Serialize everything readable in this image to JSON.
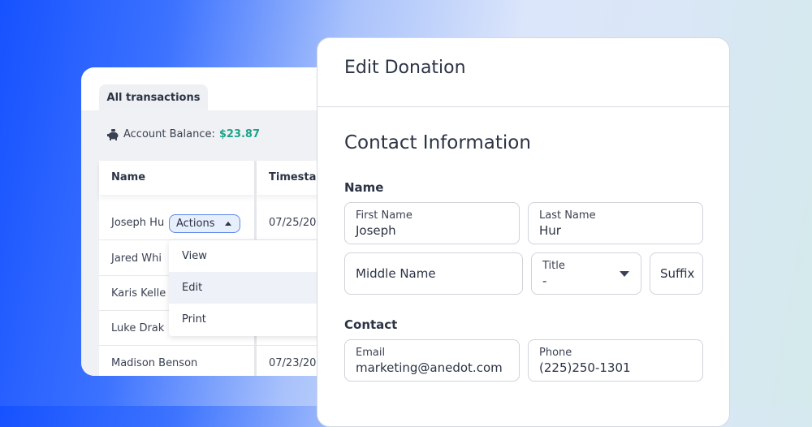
{
  "transactions": {
    "tab": "All transactions",
    "balance_label": "Account Balance:",
    "balance_value": "$23.87",
    "columns": [
      "Name",
      "Timesta"
    ],
    "rows": [
      {
        "name": "Joseph Hu",
        "timestamp": "07/25/20"
      },
      {
        "name": "Jared Whi",
        "timestamp": ""
      },
      {
        "name": "Karis Kelle",
        "timestamp": ""
      },
      {
        "name": "Luke Drak",
        "timestamp": ""
      },
      {
        "name": "Madison Benson",
        "timestamp": "07/23/20"
      }
    ],
    "actions_label": "Actions",
    "menu": [
      "View",
      "Edit",
      "Print"
    ]
  },
  "modal": {
    "title": "Edit Donation",
    "section": "Contact Information",
    "name_label": "Name",
    "first_name": {
      "label": "First Name",
      "value": "Joseph"
    },
    "last_name": {
      "label": "Last Name",
      "value": "Hur"
    },
    "middle_name": {
      "placeholder": "Middle Name"
    },
    "title_field": {
      "label": "Title",
      "value": "-"
    },
    "suffix": {
      "placeholder": "Suffix"
    },
    "contact_label": "Contact",
    "email": {
      "label": "Email",
      "value": "marketing@anedot.com"
    },
    "phone": {
      "label": "Phone",
      "value": "(225)250-1301"
    }
  },
  "colors": {
    "accent": "#1ea38a",
    "action_border": "#5d86ee"
  }
}
